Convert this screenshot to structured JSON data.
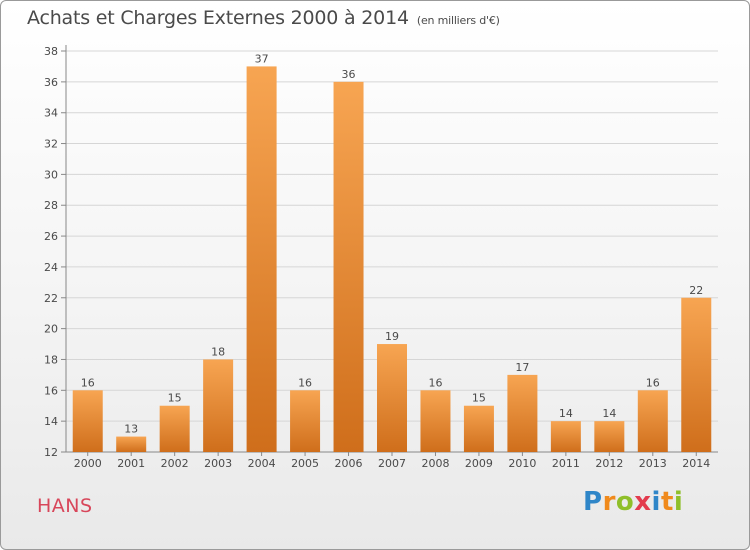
{
  "title": "Achats et Charges Externes 2000 à 2014",
  "unit_note": "(en milliers d'€)",
  "commune": "HANS",
  "logo": {
    "text": "Proxiti",
    "letters": [
      {
        "char": "P",
        "color": "#2f86c8"
      },
      {
        "char": "r",
        "color": "#f08a1c"
      },
      {
        "char": "o",
        "color": "#8fbf2a"
      },
      {
        "char": "x",
        "color": "#e33b4e"
      },
      {
        "char": "i",
        "color": "#2f86c8"
      },
      {
        "char": "t",
        "color": "#f08a1c"
      },
      {
        "char": "i",
        "color": "#8fbf2a"
      }
    ]
  },
  "colors": {
    "bar_light": "#f7a552",
    "bar_dark": "#cf6e1b",
    "text": "#4a4a4a",
    "commune": "#d8465a"
  },
  "chart_data": {
    "type": "bar",
    "title": "Achats et Charges Externes 2000 à 2014",
    "subtitle": "(en milliers d'€)",
    "categories": [
      "2000",
      "2001",
      "2002",
      "2003",
      "2004",
      "2005",
      "2006",
      "2007",
      "2008",
      "2009",
      "2010",
      "2011",
      "2012",
      "2013",
      "2014"
    ],
    "values": [
      16,
      13,
      15,
      18,
      37,
      16,
      36,
      19,
      16,
      15,
      17,
      14,
      14,
      16,
      22
    ],
    "xlabel": "",
    "ylabel": "",
    "ylim": [
      12,
      38
    ],
    "yticks": [
      12,
      14,
      16,
      18,
      20,
      22,
      24,
      26,
      28,
      30,
      32,
      34,
      36,
      38
    ],
    "grid": true,
    "legend": "none"
  }
}
